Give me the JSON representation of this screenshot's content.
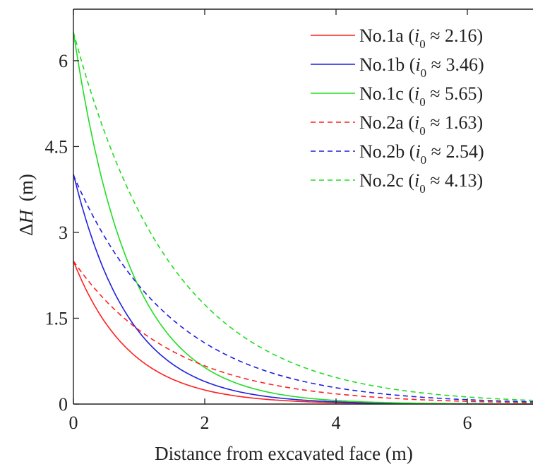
{
  "chart_data": {
    "type": "line",
    "xlabel": "Distance from excavated face (m)",
    "ylabel": "ΔH (m)",
    "ylabel_parts": {
      "symbol": "Δ",
      "variable": "H",
      "unit": "(m)"
    },
    "xlim": [
      0,
      7
    ],
    "ylim": [
      0,
      6.9
    ],
    "xticks": [
      0,
      2,
      4,
      6
    ],
    "xtick_labels": [
      "0",
      "2",
      "4",
      "6"
    ],
    "yticks": [
      0,
      1.5,
      3,
      4.5,
      6
    ],
    "ytick_labels": [
      "0",
      "1.5",
      "3",
      "4.5",
      "6"
    ],
    "legend_position": "top-right",
    "grid": false,
    "series": [
      {
        "name": "No.1a (i0 ≈ 2.16)",
        "label_main": "No.1a (",
        "label_var": "i",
        "label_sub": "0",
        "label_tail": " ≈ 2.16)",
        "color": "#ff1f1f",
        "dash": "solid",
        "y0": 2.5,
        "decay": 1.16,
        "x": [
          0,
          1,
          2,
          3,
          4,
          5,
          6,
          7
        ],
        "y": [
          2.5,
          0.79,
          0.25,
          0.08,
          0.02,
          0.01,
          0.0,
          0.0
        ]
      },
      {
        "name": "No.1b (i0 ≈ 3.46)",
        "label_main": "No.1b (",
        "label_var": "i",
        "label_sub": "0",
        "label_tail": " ≈ 3.46)",
        "color": "#1f1fdf",
        "dash": "solid",
        "y0": 4.02,
        "decay": 1.16,
        "x": [
          0,
          1,
          2,
          3,
          4,
          5,
          6,
          7
        ],
        "y": [
          4.02,
          1.27,
          0.4,
          0.13,
          0.04,
          0.01,
          0.0,
          0.0
        ]
      },
      {
        "name": "No.1c (i0 ≈ 5.65)",
        "label_main": "No.1c (",
        "label_var": "i",
        "label_sub": "0",
        "label_tail": " ≈ 5.65)",
        "color": "#22dd22",
        "dash": "solid",
        "y0": 6.5,
        "decay": 1.16,
        "x": [
          0,
          1,
          2,
          3,
          4,
          5,
          6,
          7
        ],
        "y": [
          6.5,
          2.06,
          0.65,
          0.21,
          0.07,
          0.02,
          0.01,
          0.0
        ]
      },
      {
        "name": "No.2a (i0 ≈ 1.63)",
        "label_main": "No.2a (",
        "label_var": "i",
        "label_sub": "0",
        "label_tail": " ≈ 1.63)",
        "color": "#ff1f1f",
        "dash": "dashed",
        "y0": 2.5,
        "decay": 0.66,
        "x": [
          0,
          1,
          2,
          3,
          4,
          5,
          6,
          7
        ],
        "y": [
          2.5,
          1.29,
          0.67,
          0.35,
          0.18,
          0.09,
          0.05,
          0.02
        ]
      },
      {
        "name": "No.2b (i0 ≈ 2.54)",
        "label_main": "No.2b (",
        "label_var": "i",
        "label_sub": "0",
        "label_tail": " ≈ 2.54)",
        "color": "#1f1fdf",
        "dash": "dashed",
        "y0": 4.0,
        "decay": 0.66,
        "x": [
          0,
          1,
          2,
          3,
          4,
          5,
          6,
          7
        ],
        "y": [
          4.0,
          2.07,
          1.07,
          0.55,
          0.29,
          0.15,
          0.08,
          0.04
        ]
      },
      {
        "name": "No.2c (i0 ≈ 4.13)",
        "label_main": "No.2c (",
        "label_var": "i",
        "label_sub": "0",
        "label_tail": " ≈ 4.13)",
        "color": "#22dd22",
        "dash": "dashed",
        "y0": 6.5,
        "decay": 0.66,
        "x": [
          0,
          1,
          2,
          3,
          4,
          5,
          6,
          7
        ],
        "y": [
          6.5,
          3.36,
          1.74,
          0.9,
          0.47,
          0.24,
          0.12,
          0.06
        ]
      }
    ]
  }
}
